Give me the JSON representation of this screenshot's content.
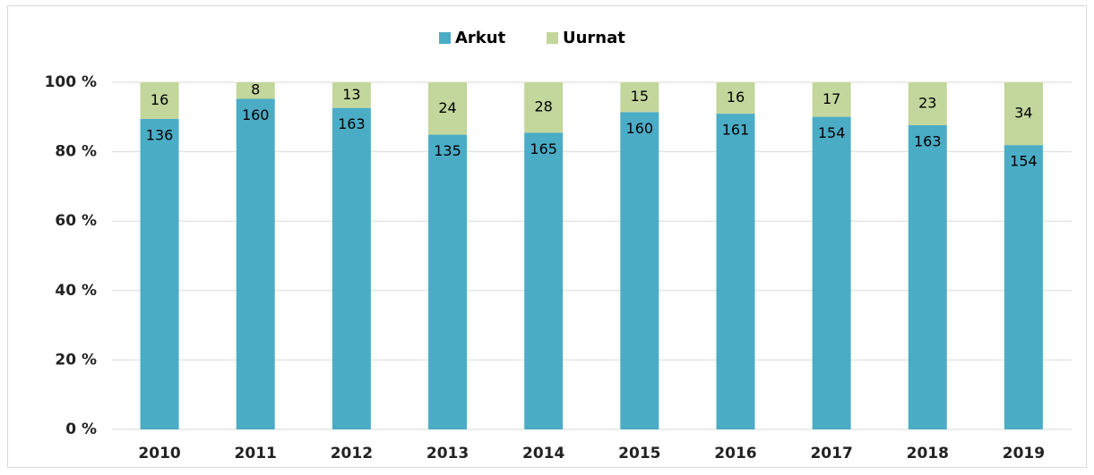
{
  "chart_data": {
    "type": "bar",
    "stacking": "percent",
    "categories": [
      "2010",
      "2011",
      "2012",
      "2013",
      "2014",
      "2015",
      "2016",
      "2017",
      "2018",
      "2019"
    ],
    "series": [
      {
        "name": "Arkut",
        "color": "#4bacc6",
        "values": [
          136,
          160,
          163,
          135,
          165,
          160,
          161,
          154,
          163,
          154
        ]
      },
      {
        "name": "Uurnat",
        "color": "#c3d69b",
        "values": [
          16,
          8,
          13,
          24,
          28,
          15,
          16,
          17,
          23,
          34
        ]
      }
    ],
    "ylim": [
      0,
      100
    ],
    "yticks": [
      {
        "value": 0,
        "label": "0 %"
      },
      {
        "value": 20,
        "label": "20 %"
      },
      {
        "value": 40,
        "label": "40 %"
      },
      {
        "value": 60,
        "label": "60 %"
      },
      {
        "value": 80,
        "label": "80 %"
      },
      {
        "value": 100,
        "label": "100 %"
      }
    ],
    "grid": true,
    "legend": "top"
  }
}
